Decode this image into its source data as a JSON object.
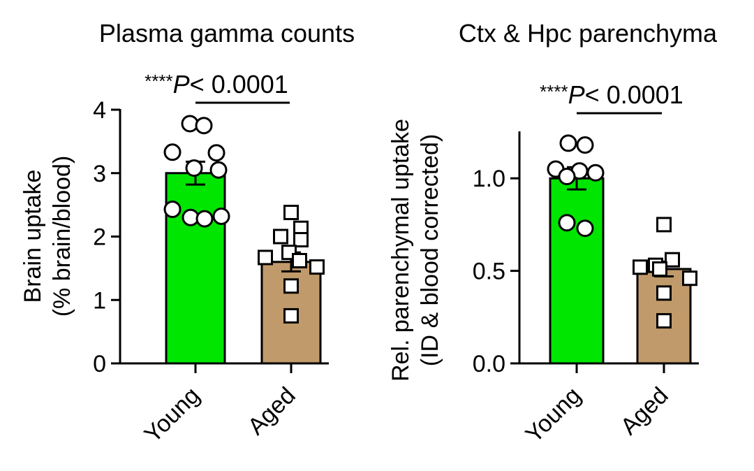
{
  "chart_data": [
    {
      "type": "bar",
      "title": "Plasma gamma counts",
      "ylabel_line1": "Brain uptake",
      "ylabel_line2": "(% brain/blood)",
      "categories": [
        "Young",
        "Aged"
      ],
      "values": [
        3.0,
        1.6
      ],
      "errors": [
        0.18,
        0.15
      ],
      "ylim": [
        0,
        4
      ],
      "yticks": [
        "0",
        "1",
        "2",
        "3",
        "4"
      ],
      "bar_colors": [
        "#00e600",
        "#c19a6b"
      ],
      "significance": {
        "stars": "****",
        "p_label": "P",
        "rest": "< 0.0001"
      },
      "points": [
        [
          3.78,
          3.75,
          3.33,
          3.32,
          3.08,
          3.05,
          2.43,
          2.3,
          2.28,
          2.32
        ],
        [
          2.38,
          2.13,
          2.0,
          1.95,
          1.75,
          1.67,
          1.62,
          1.52,
          1.22,
          0.75
        ]
      ]
    },
    {
      "type": "bar",
      "title": "Ctx & Hpc parenchyma",
      "ylabel_line1": "Rel. parenchymal uptake",
      "ylabel_line2": "(ID & blood corrected)",
      "categories": [
        "Young",
        "Aged"
      ],
      "values": [
        1.0,
        0.51
      ],
      "errors": [
        0.06,
        0.04
      ],
      "ylim": [
        0,
        1.25
      ],
      "yticks": [
        "0.0",
        "0.5",
        "1.0"
      ],
      "bar_colors": [
        "#00e600",
        "#c19a6b"
      ],
      "significance": {
        "stars": "****",
        "p_label": "P",
        "rest": "< 0.0001"
      },
      "points": [
        [
          1.19,
          1.18,
          1.05,
          1.04,
          1.03,
          1.01,
          0.76,
          0.73
        ],
        [
          0.75,
          0.56,
          0.53,
          0.52,
          0.51,
          0.46,
          0.38,
          0.23
        ]
      ]
    }
  ]
}
